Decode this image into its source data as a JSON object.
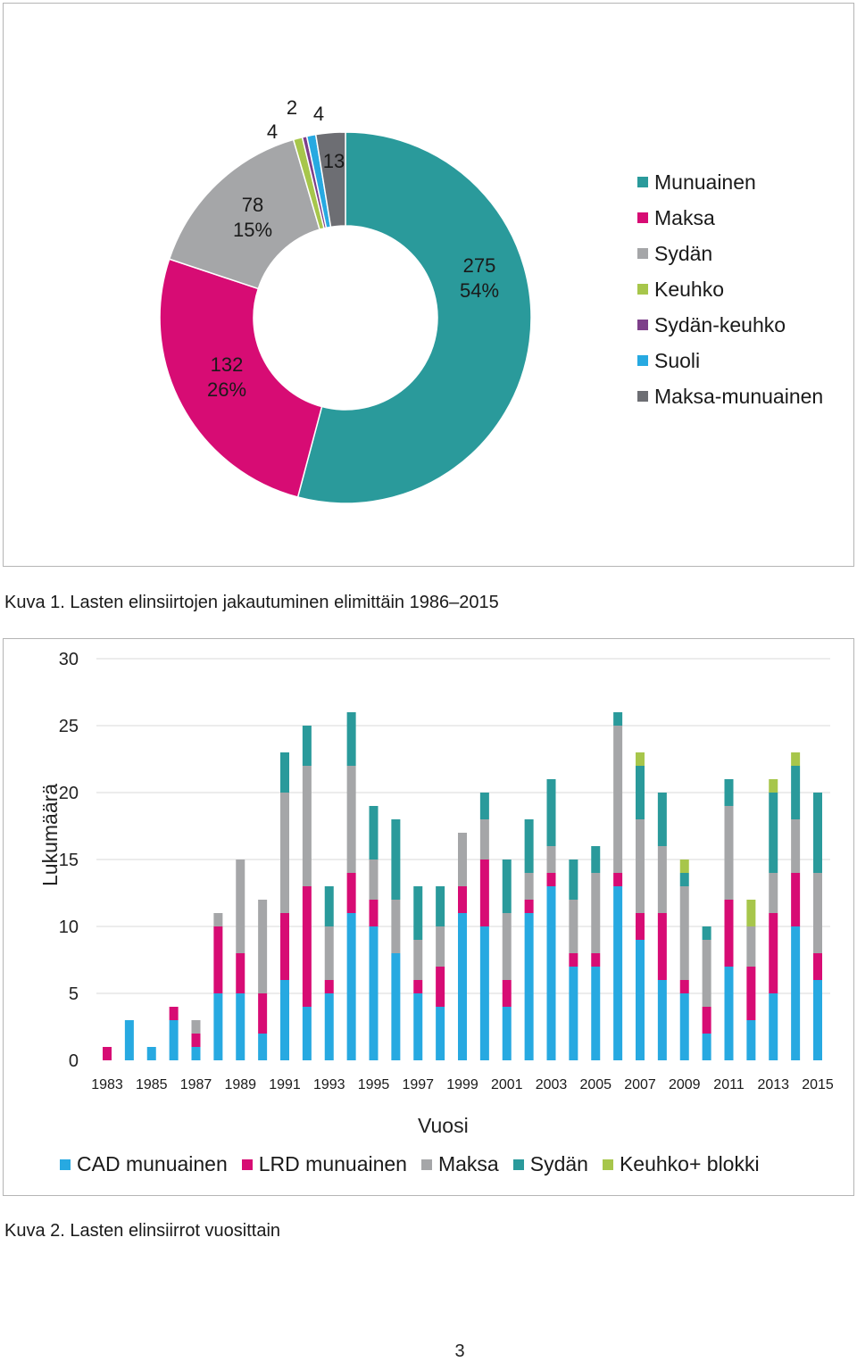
{
  "figure1": {
    "caption": "Kuva 1. Lasten elinsiirtojen jakautuminen elimittäin 1986–2015",
    "chart_data": {
      "type": "pie",
      "variant": "donut",
      "title": "",
      "slices": [
        {
          "name": "Munuainen",
          "value": 275,
          "percent_label": "54%",
          "color": "#2a9a9b"
        },
        {
          "name": "Maksa",
          "value": 132,
          "percent_label": "26%",
          "color": "#d70c74"
        },
        {
          "name": "Sydän",
          "value": 78,
          "percent_label": "15%",
          "color": "#a5a6a8"
        },
        {
          "name": "Keuhko",
          "value": 4,
          "percent_label": "",
          "color": "#a7c64b"
        },
        {
          "name": "Sydän-keuhko",
          "value": 2,
          "percent_label": "",
          "color": "#7d3f8a"
        },
        {
          "name": "Suoli",
          "value": 4,
          "percent_label": "",
          "color": "#27a9e1"
        },
        {
          "name": "Maksa-munuainen",
          "value": 13,
          "percent_label": "",
          "color": "#6d6e73"
        }
      ],
      "legend_position": "right"
    }
  },
  "figure2": {
    "caption": "Kuva 2. Lasten elinsiirrot vuosittain",
    "chart_data": {
      "type": "bar",
      "stacked": true,
      "title": "",
      "xlabel": "Vuosi",
      "ylabel": "Lukumäärä",
      "ylim": [
        0,
        30
      ],
      "yticks": [
        0,
        5,
        10,
        15,
        20,
        25,
        30
      ],
      "grid": true,
      "legend_position": "bottom",
      "categories": [
        1983,
        1984,
        1985,
        1986,
        1987,
        1988,
        1989,
        1990,
        1991,
        1992,
        1993,
        1994,
        1995,
        1996,
        1997,
        1998,
        1999,
        2000,
        2001,
        2002,
        2003,
        2004,
        2005,
        2006,
        2007,
        2008,
        2009,
        2010,
        2011,
        2012,
        2013,
        2014,
        2015
      ],
      "xtick_labels": [
        "1983",
        "1985",
        "1987",
        "1989",
        "1991",
        "1993",
        "1995",
        "1997",
        "1999",
        "2001",
        "2003",
        "2005",
        "2007",
        "2009",
        "2011",
        "2013",
        "2015"
      ],
      "series": [
        {
          "name": "CAD munuainen",
          "color": "#27a9e1",
          "values": [
            0,
            3,
            1,
            3,
            1,
            5,
            5,
            2,
            6,
            4,
            5,
            11,
            10,
            8,
            5,
            4,
            11,
            10,
            4,
            11,
            13,
            7,
            7,
            13,
            9,
            6,
            5,
            2,
            7,
            3,
            5,
            10,
            6
          ]
        },
        {
          "name": "LRD munuainen",
          "color": "#d70c74",
          "values": [
            1,
            0,
            0,
            1,
            1,
            5,
            3,
            3,
            5,
            9,
            1,
            3,
            2,
            0,
            1,
            3,
            2,
            5,
            2,
            1,
            1,
            1,
            1,
            1,
            2,
            5,
            1,
            2,
            5,
            4,
            6,
            4,
            2
          ]
        },
        {
          "name": "Maksa",
          "color": "#a5a6a8",
          "values": [
            0,
            0,
            0,
            0,
            1,
            1,
            7,
            7,
            9,
            9,
            4,
            8,
            3,
            4,
            3,
            3,
            4,
            3,
            5,
            2,
            2,
            4,
            6,
            11,
            7,
            5,
            7,
            5,
            7,
            3,
            3,
            4,
            6
          ]
        },
        {
          "name": "Sydän",
          "color": "#2a9a9b",
          "values": [
            0,
            0,
            0,
            0,
            0,
            0,
            0,
            0,
            3,
            3,
            3,
            4,
            4,
            6,
            4,
            3,
            0,
            2,
            4,
            4,
            5,
            3,
            2,
            1,
            4,
            4,
            1,
            1,
            2,
            0,
            6,
            4,
            6
          ]
        },
        {
          "name": "Keuhko+ blokki",
          "color": "#a7c64b",
          "values": [
            0,
            0,
            0,
            0,
            0,
            0,
            0,
            0,
            0,
            0,
            0,
            0,
            0,
            0,
            0,
            0,
            0,
            0,
            0,
            0,
            0,
            0,
            0,
            0,
            1,
            0,
            1,
            0,
            0,
            2,
            1,
            1,
            0
          ]
        }
      ]
    }
  },
  "page_number": "3"
}
